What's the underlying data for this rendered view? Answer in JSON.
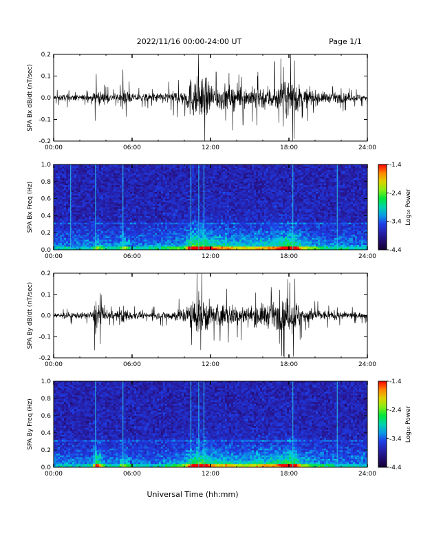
{
  "header": {
    "title": "2022/11/16  00:00-24:00 UT",
    "page": "Page 1/1"
  },
  "xlabel": "Universal Time (hh:mm)",
  "chart_data": [
    {
      "type": "line",
      "ylabel": "SPA Bx dB/dt (nT/sec)",
      "xlim_hours": [
        0,
        24
      ],
      "xticks": [
        "00:00",
        "06:00",
        "12:00",
        "18:00",
        "24:00"
      ],
      "ylim": [
        -0.2,
        0.2
      ],
      "yticks": [
        "-0.2",
        "-0.1",
        "0.0",
        "0.1",
        "0.2"
      ],
      "color": "#000000",
      "series": [
        {
          "x_hours": [
            0,
            1,
            2,
            3,
            3.2,
            4,
            5,
            5.3,
            6,
            7,
            8,
            9,
            10,
            10.5,
            11,
            11.5,
            12,
            12.5,
            13,
            14,
            15,
            16,
            17,
            17.5,
            18,
            18.3,
            19,
            20,
            21,
            22,
            23,
            24
          ],
          "amplitude": [
            0.03,
            0.035,
            0.03,
            0.035,
            0.09,
            0.04,
            0.045,
            0.1,
            0.04,
            0.04,
            0.05,
            0.06,
            0.08,
            0.2,
            0.2,
            0.2,
            0.15,
            0.13,
            0.13,
            0.11,
            0.1,
            0.12,
            0.13,
            0.15,
            0.18,
            0.2,
            0.1,
            0.07,
            0.05,
            0.05,
            0.04,
            0.035
          ]
        }
      ]
    },
    {
      "type": "heatmap",
      "ylabel": "SPA Bx Freq (Hz)",
      "xlim_hours": [
        0,
        24
      ],
      "xticks": [
        "00:00",
        "06:00",
        "12:00",
        "18:00",
        "24:00"
      ],
      "ylim": [
        0,
        1.0
      ],
      "yticks": [
        "0.0",
        "0.2",
        "0.4",
        "0.6",
        "0.8",
        "1.0"
      ],
      "colorbar": {
        "label": "Log₁₀ Power",
        "range": [
          -4.4,
          -1.4
        ],
        "ticks": [
          "-1.4",
          "-2.4",
          "-3.4",
          "-4.4"
        ]
      },
      "spikes_hours": [
        1.3,
        3.2,
        5.3,
        10.5,
        11.1,
        11.5,
        18.3,
        21.7
      ]
    },
    {
      "type": "line",
      "ylabel": "SPA By dB/dt (nT/sec)",
      "xlim_hours": [
        0,
        24
      ],
      "xticks": [
        "00:00",
        "06:00",
        "12:00",
        "18:00",
        "24:00"
      ],
      "ylim": [
        -0.2,
        0.2
      ],
      "yticks": [
        "-0.2",
        "-0.1",
        "0.0",
        "0.1",
        "0.2"
      ],
      "color": "#000000",
      "series": [
        {
          "x_hours": [
            0,
            1,
            2,
            3,
            3.2,
            4,
            5,
            5.3,
            6,
            7,
            8,
            9,
            10,
            10.5,
            11,
            11.5,
            12,
            12.5,
            13,
            14,
            15,
            16,
            17,
            17.5,
            18,
            18.3,
            19,
            20,
            21,
            22,
            23,
            24
          ],
          "amplitude": [
            0.03,
            0.035,
            0.03,
            0.035,
            0.2,
            0.04,
            0.045,
            0.1,
            0.04,
            0.03,
            0.035,
            0.05,
            0.08,
            0.15,
            0.2,
            0.2,
            0.13,
            0.12,
            0.12,
            0.1,
            0.09,
            0.12,
            0.13,
            0.15,
            0.18,
            0.2,
            0.09,
            0.06,
            0.05,
            0.04,
            0.035,
            0.03
          ]
        }
      ]
    },
    {
      "type": "heatmap",
      "ylabel": "SPA By Freq (Hz)",
      "xlim_hours": [
        0,
        24
      ],
      "xticks": [
        "00:00",
        "06:00",
        "12:00",
        "18:00",
        "24:00"
      ],
      "ylim": [
        0,
        1.0
      ],
      "yticks": [
        "0.0",
        "0.2",
        "0.4",
        "0.6",
        "0.8",
        "1.0"
      ],
      "colorbar": {
        "label": "Log₁₀ Power",
        "range": [
          -4.4,
          -1.4
        ],
        "ticks": [
          "-1.4",
          "-2.4",
          "-3.4",
          "-4.4"
        ]
      },
      "spikes_hours": [
        3.2,
        5.3,
        10.5,
        11.1,
        11.5,
        18.3,
        21.7
      ]
    }
  ]
}
